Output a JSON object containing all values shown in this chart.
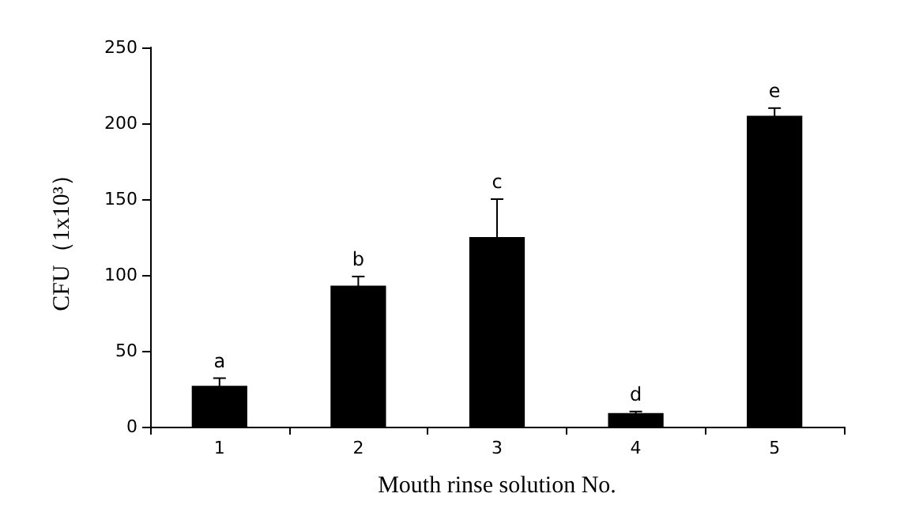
{
  "chart_data": {
    "type": "bar",
    "xlabel": "Mouth rinse solution No.",
    "ylabel": "CFU（1x10³）",
    "categories": [
      "1",
      "2",
      "3",
      "4",
      "5"
    ],
    "values": [
      27,
      93,
      125,
      9,
      205
    ],
    "errors": [
      5,
      6,
      25,
      1,
      5
    ],
    "color": "#000000",
    "ylim": [
      0,
      250
    ],
    "yticks": [
      0,
      50,
      100,
      150,
      200,
      250
    ],
    "grid": false,
    "annotations": [
      {
        "text": "a",
        "x": "1",
        "y": 32
      },
      {
        "text": "b",
        "x": "2",
        "y": 99
      },
      {
        "text": "c",
        "x": "3",
        "y": 150
      },
      {
        "text": "d",
        "x": "4",
        "y": 10
      },
      {
        "text": "e",
        "x": "5",
        "y": 210
      }
    ]
  }
}
